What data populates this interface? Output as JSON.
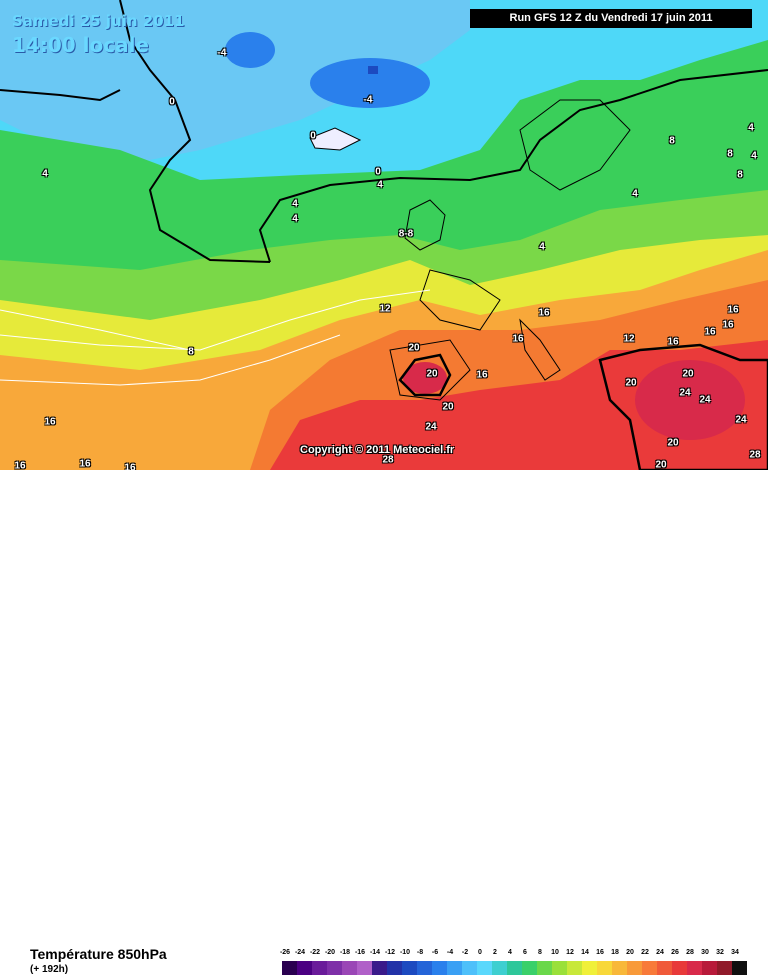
{
  "header": {
    "date_line": "Samedi 25 juin 2011",
    "time_line": "14:00 locale",
    "run_info": "Run GFS 12 Z du Vendredi 17 juin 2011"
  },
  "copyright": "Copyright © 2011 Meteociel.fr",
  "footer": {
    "variable_title": "Température 850hPa",
    "forecast_offset": "(+ 192h)"
  },
  "scale": {
    "ticks": [
      "-26",
      "-24",
      "-22",
      "-20",
      "-18",
      "-16",
      "-14",
      "-12",
      "-10",
      "-8",
      "-6",
      "-4",
      "-2",
      "0",
      "2",
      "4",
      "6",
      "8",
      "10",
      "12",
      "14",
      "16",
      "18",
      "20",
      "22",
      "24",
      "26",
      "28",
      "30",
      "32",
      "34"
    ],
    "colors": [
      "#2a0050",
      "#4b0082",
      "#6a1b9a",
      "#7e2fa8",
      "#9a46b6",
      "#b060c8",
      "#3a1a8a",
      "#2232a8",
      "#1c4ac0",
      "#2464d8",
      "#2a80ec",
      "#3aa0f4",
      "#4ec0fa",
      "#5ad8fc",
      "#3ecfd0",
      "#2ec79a",
      "#3ad06a",
      "#6ad84a",
      "#9ae03a",
      "#c8e83a",
      "#f0f03a",
      "#f8d83a",
      "#f8b83a",
      "#f89a3a",
      "#f87a3a",
      "#f05a3a",
      "#e83a3a",
      "#d82a4a",
      "#b81a3a",
      "#901a2a",
      "#101010"
    ]
  },
  "isotherm_labels": [
    {
      "text": "4"
    },
    {
      "text": "-4"
    },
    {
      "text": "-4"
    },
    {
      "text": "0"
    },
    {
      "text": "0"
    },
    {
      "text": "4"
    },
    {
      "text": "0"
    },
    {
      "text": "4"
    },
    {
      "text": "4"
    },
    {
      "text": "4"
    },
    {
      "text": "8-8"
    },
    {
      "text": "8"
    },
    {
      "text": "4"
    },
    {
      "text": "4"
    },
    {
      "text": "8"
    },
    {
      "text": "8"
    },
    {
      "text": "4"
    },
    {
      "text": "12"
    },
    {
      "text": "8"
    },
    {
      "text": "16"
    },
    {
      "text": "16"
    },
    {
      "text": "12"
    },
    {
      "text": "16"
    },
    {
      "text": "16"
    },
    {
      "text": "16"
    },
    {
      "text": "16"
    },
    {
      "text": "20"
    },
    {
      "text": "20"
    },
    {
      "text": "16"
    },
    {
      "text": "20"
    },
    {
      "text": "24"
    },
    {
      "text": "20"
    },
    {
      "text": "20"
    },
    {
      "text": "24"
    },
    {
      "text": "24"
    },
    {
      "text": "24"
    },
    {
      "text": "20"
    },
    {
      "text": "20"
    },
    {
      "text": "28"
    },
    {
      "text": "28"
    },
    {
      "text": "16"
    },
    {
      "text": "16"
    },
    {
      "text": "16"
    },
    {
      "text": "16"
    }
  ]
}
